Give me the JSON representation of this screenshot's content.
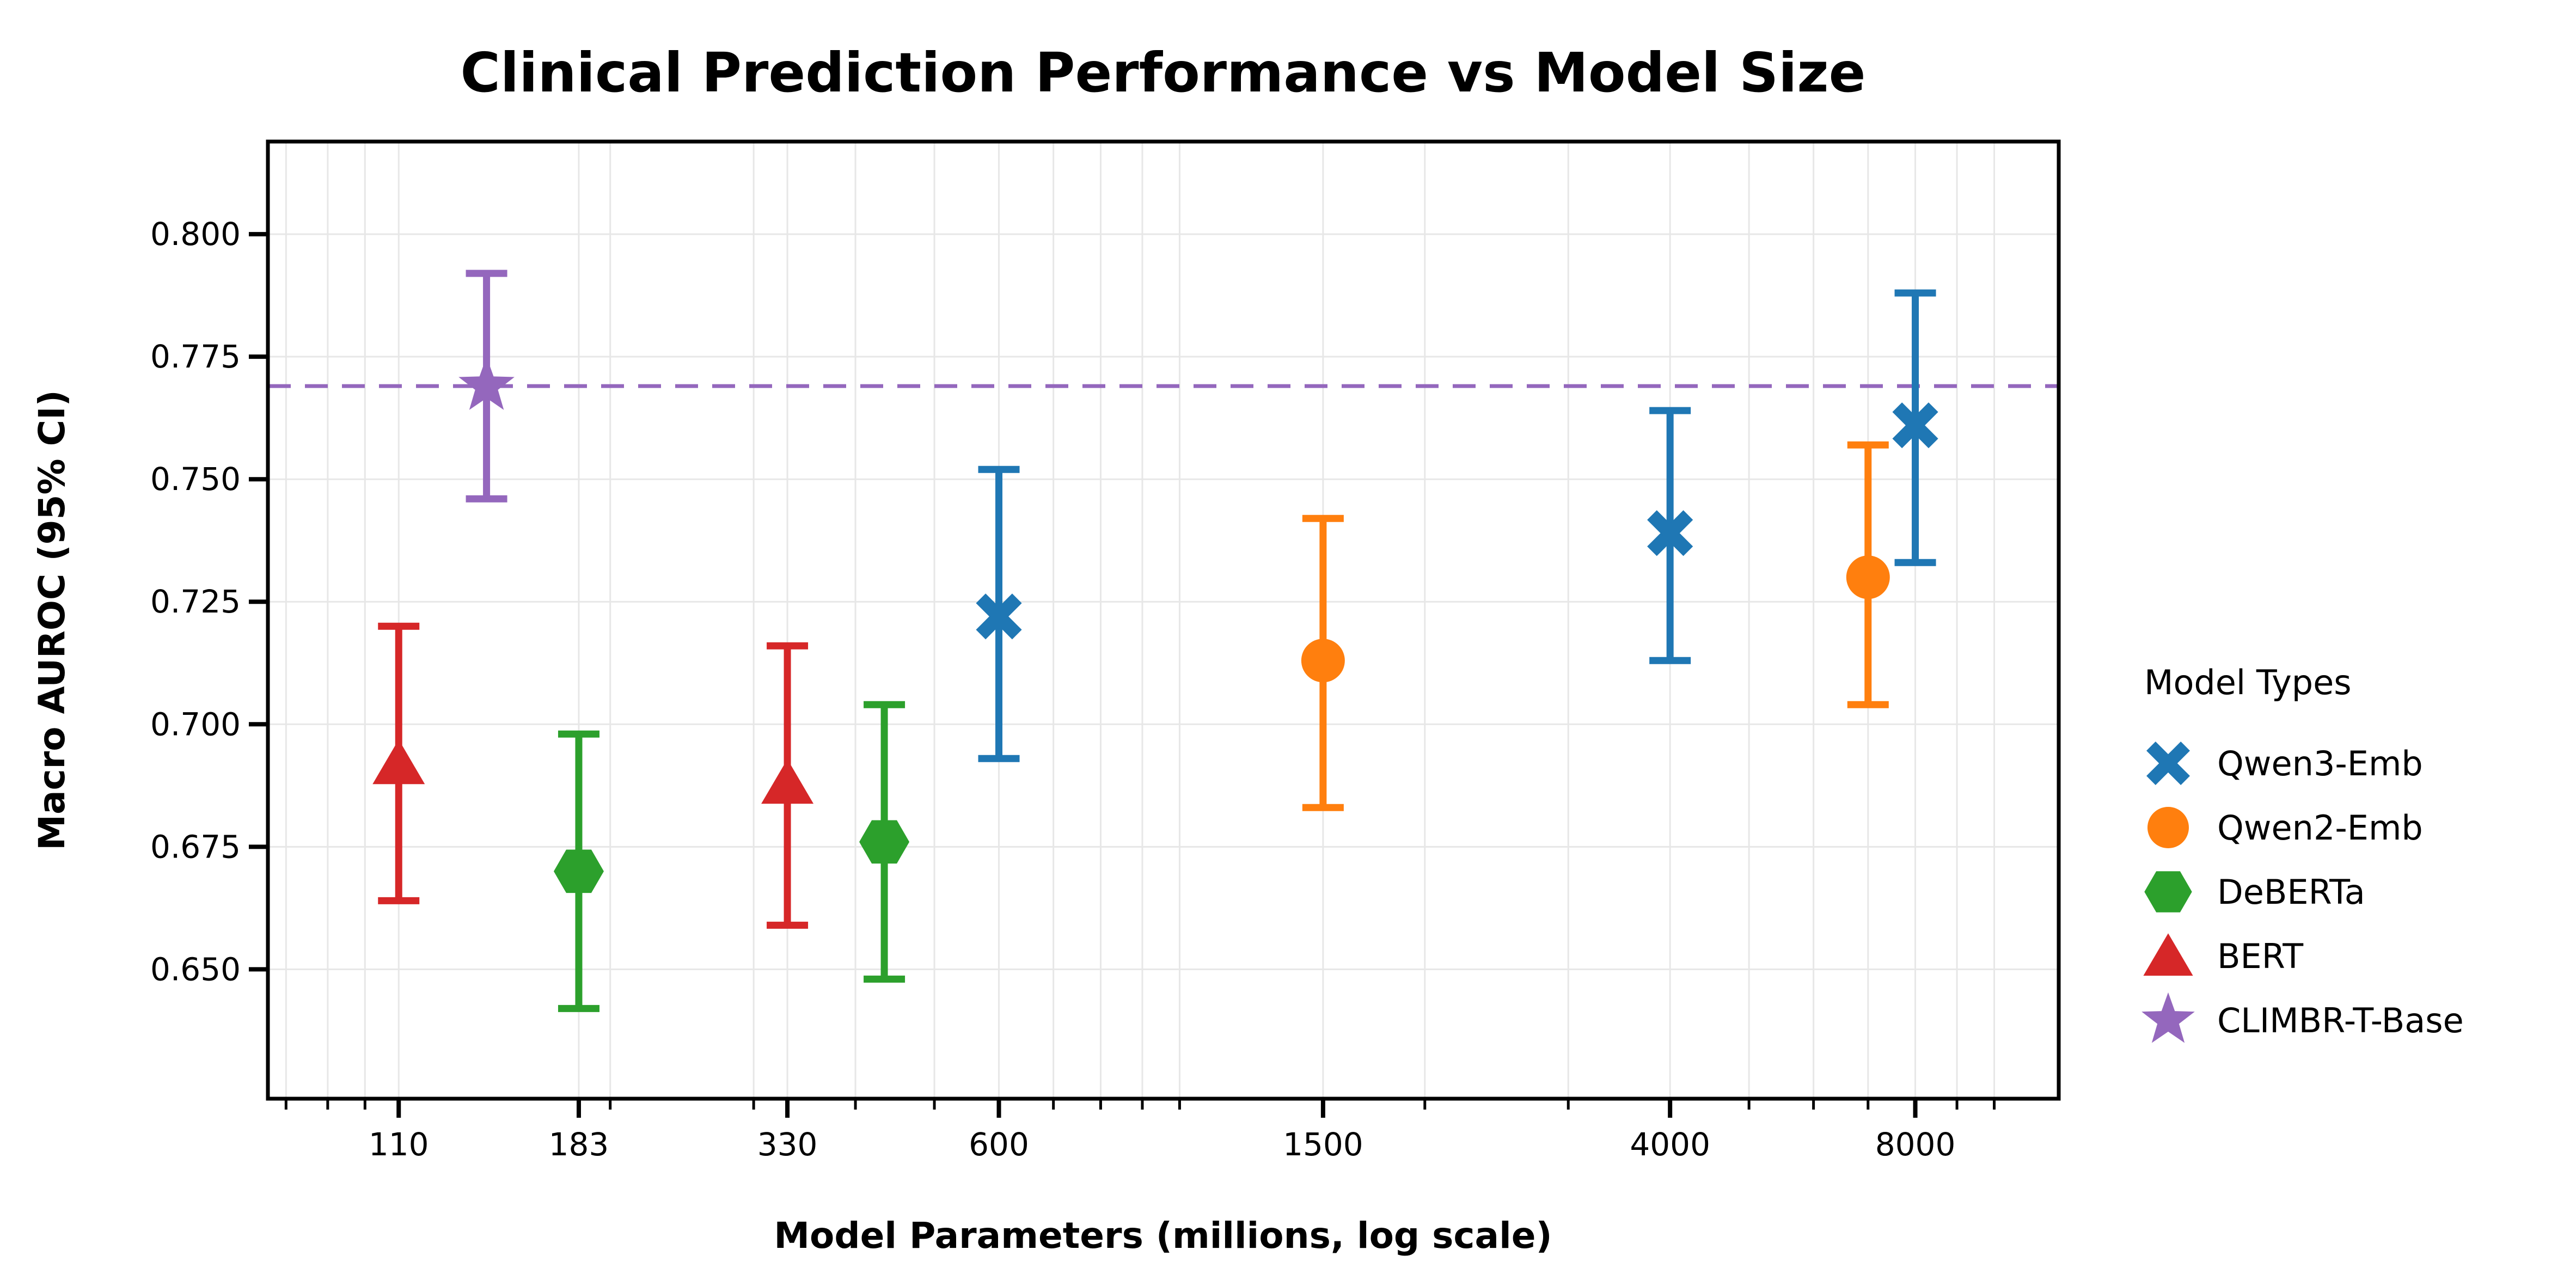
{
  "chart_data": {
    "type": "scatter",
    "title": "Clinical Prediction Performance vs Model Size",
    "xlabel": "Model Parameters (millions, log scale)",
    "ylabel": "Macro AUROC (95% CI)",
    "x_scale": "log",
    "xlim": [
      76,
      12000
    ],
    "ylim": [
      0.6236,
      0.8189
    ],
    "x_ticks": [
      110,
      183,
      330,
      600,
      1500,
      4000,
      8000
    ],
    "x_tick_labels": [
      "110",
      "183",
      "330",
      "600",
      "1500",
      "4000",
      "8000"
    ],
    "x_minor_ticks": [
      80,
      90,
      100,
      200,
      300,
      400,
      500,
      700,
      800,
      900,
      1000,
      2000,
      3000,
      5000,
      6000,
      7000,
      9000,
      10000
    ],
    "y_ticks": [
      0.65,
      0.675,
      0.7,
      0.725,
      0.75,
      0.775,
      0.8
    ],
    "y_tick_labels": [
      "0.650",
      "0.675",
      "0.700",
      "0.725",
      "0.750",
      "0.775",
      "0.800"
    ],
    "grid": true,
    "grid_color": "#e7e7e7",
    "background_color": "#ffffff",
    "text_color": "#000000",
    "legend_title": "Model Types",
    "legend_position": "outside-right",
    "reference_line": {
      "y": 0.769,
      "style": "dashed",
      "color": "#9467bd"
    },
    "series": [
      {
        "name": "Qwen3-Emb",
        "color": "#1f77b4",
        "marker": "X",
        "points": [
          {
            "x": 600,
            "y": 0.722,
            "ci_low": 0.693,
            "ci_high": 0.752
          },
          {
            "x": 4000,
            "y": 0.739,
            "ci_low": 0.713,
            "ci_high": 0.764
          },
          {
            "x": 8000,
            "y": 0.761,
            "ci_low": 0.733,
            "ci_high": 0.788
          }
        ]
      },
      {
        "name": "Qwen2-Emb",
        "color": "#ff7f0e",
        "marker": "circle",
        "points": [
          {
            "x": 1500,
            "y": 0.713,
            "ci_low": 0.683,
            "ci_high": 0.742
          },
          {
            "x": 7000,
            "y": 0.73,
            "ci_low": 0.704,
            "ci_high": 0.757
          }
        ]
      },
      {
        "name": "DeBERTa",
        "color": "#2ca02c",
        "marker": "hexagon",
        "points": [
          {
            "x": 183,
            "y": 0.67,
            "ci_low": 0.642,
            "ci_high": 0.698
          },
          {
            "x": 434,
            "y": 0.676,
            "ci_low": 0.648,
            "ci_high": 0.704
          }
        ]
      },
      {
        "name": "BERT",
        "color": "#d62728",
        "marker": "triangle",
        "points": [
          {
            "x": 110,
            "y": 0.692,
            "ci_low": 0.664,
            "ci_high": 0.72
          },
          {
            "x": 330,
            "y": 0.688,
            "ci_low": 0.659,
            "ci_high": 0.716
          }
        ]
      },
      {
        "name": "CLIMBR-T-Base",
        "color": "#9467bd",
        "marker": "star",
        "points": [
          {
            "x": 141,
            "y": 0.769,
            "ci_low": 0.746,
            "ci_high": 0.792
          }
        ]
      }
    ]
  }
}
